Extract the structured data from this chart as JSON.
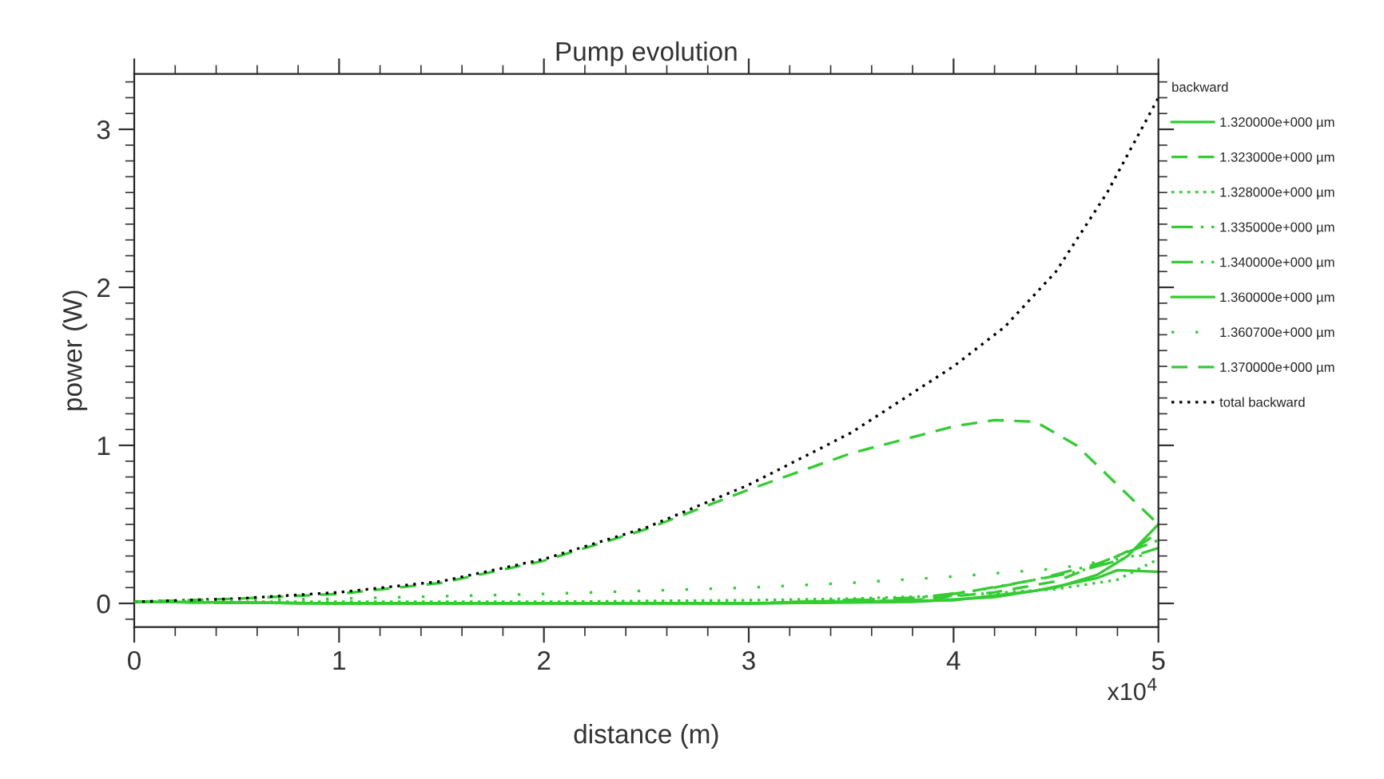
{
  "chart_data": {
    "type": "line",
    "title": "Pump evolution",
    "xlabel": "distance (m)",
    "ylabel": "power (W)",
    "legend_title": "backward",
    "legend": "right",
    "annotations": [
      "x10$^{4}$"
    ],
    "xlim": [
      0,
      5
    ],
    "xticks": [
      0,
      1,
      2,
      3,
      4,
      5
    ],
    "ylim": [
      -0.15,
      3.35
    ],
    "yticks": [
      0,
      1,
      2,
      3
    ],
    "grid": false,
    "series": [
      {
        "name": "1.320000e+000 µm",
        "color": "#33cc33",
        "line_style": "solid",
        "x": [
          0,
          1,
          2,
          3,
          3.8,
          4.2,
          4.5,
          4.7,
          4.85,
          5
        ],
        "values": [
          0.01,
          0.0,
          0.0,
          0.0,
          0.01,
          0.04,
          0.1,
          0.18,
          0.3,
          0.5
        ]
      },
      {
        "name": "1.323000e+000 µm",
        "color": "#33cc33",
        "line_style": "dashed",
        "x": [
          0,
          1,
          2,
          3,
          3.8,
          4.2,
          4.5,
          4.7,
          4.9,
          5
        ],
        "values": [
          0.01,
          0.0,
          0.0,
          0.0,
          0.02,
          0.07,
          0.14,
          0.24,
          0.36,
          0.45
        ]
      },
      {
        "name": "1.328000e+000 µm",
        "color": "#33cc33",
        "line_style": "dotted",
        "x": [
          0,
          1,
          2,
          3,
          3.5,
          4,
          4.5,
          4.8,
          5
        ],
        "values": [
          0.01,
          0.01,
          0.01,
          0.02,
          0.03,
          0.05,
          0.09,
          0.15,
          0.28
        ]
      },
      {
        "name": "1.335000e+000 µm",
        "color": "#33cc33",
        "line_style": "dashdot",
        "x": [
          0,
          1,
          2,
          3,
          3.8,
          4.1,
          4.4,
          4.7,
          5
        ],
        "values": [
          0.01,
          0.0,
          0.0,
          0.0,
          0.03,
          0.08,
          0.15,
          0.25,
          0.4
        ]
      },
      {
        "name": "1.340000e+000 µm",
        "color": "#33cc33",
        "line_style": "dashdotdot",
        "x": [
          0,
          1,
          2,
          3,
          3.9,
          4.2,
          4.6,
          4.8,
          5
        ],
        "values": [
          0.01,
          0.0,
          0.0,
          0.0,
          0.04,
          0.1,
          0.2,
          0.27,
          0.35
        ]
      },
      {
        "name": "1.360000e+000 µm",
        "color": "#33cc33",
        "line_style": "solid",
        "x": [
          0,
          1,
          2,
          3,
          4,
          4.4,
          4.7,
          4.8,
          5
        ],
        "values": [
          0.01,
          0.0,
          0.0,
          0.0,
          0.02,
          0.08,
          0.16,
          0.21,
          0.2
        ]
      },
      {
        "name": "1.360700e+000 µm",
        "color": "#33cc33",
        "line_style": "sparse",
        "x": [
          0,
          1,
          2,
          3,
          3.5,
          4,
          4.5,
          5
        ],
        "values": [
          0.01,
          0.03,
          0.06,
          0.1,
          0.13,
          0.17,
          0.22,
          0.32
        ]
      },
      {
        "name": "1.370000e+000 µm",
        "color": "#33cc33",
        "line_style": "dashed",
        "x": [
          0,
          0.5,
          1,
          1.5,
          2,
          2.5,
          3,
          3.5,
          4,
          4.2,
          4.4,
          4.6,
          4.8,
          5
        ],
        "values": [
          0.01,
          0.03,
          0.06,
          0.13,
          0.27,
          0.47,
          0.72,
          0.95,
          1.12,
          1.16,
          1.15,
          1.0,
          0.75,
          0.5
        ]
      },
      {
        "name": "total backward",
        "color": "#000000",
        "line_style": "dotted",
        "x": [
          0,
          0.5,
          1,
          1.5,
          2,
          2.5,
          3,
          3.5,
          4,
          4.25,
          4.5,
          4.75,
          5
        ],
        "values": [
          0.01,
          0.03,
          0.07,
          0.14,
          0.28,
          0.48,
          0.75,
          1.08,
          1.5,
          1.75,
          2.1,
          2.6,
          3.2
        ]
      }
    ]
  }
}
